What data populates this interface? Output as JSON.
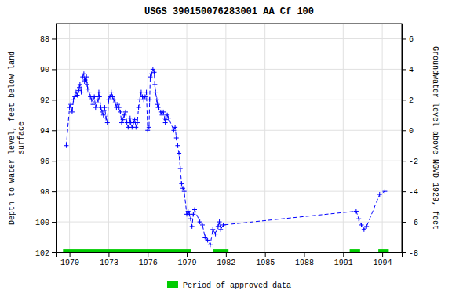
{
  "chart_data": {
    "type": "line",
    "title": "USGS 390150076283001 AA Cf 100",
    "ylabel": "Depth to water level, feet below land\nsurface",
    "y2label": "Groundwater level above NGVD 1929, feet",
    "xlim": [
      1969.0,
      1995.5
    ],
    "xticks": [
      1970,
      1973,
      1976,
      1979,
      1982,
      1985,
      1988,
      1991,
      1994
    ],
    "ylim": [
      102,
      87
    ],
    "yticks": [
      88,
      90,
      92,
      94,
      96,
      98,
      100,
      102
    ],
    "y2lim": [
      -8,
      7
    ],
    "y2ticks": [
      6,
      4,
      2,
      0,
      -2,
      -4,
      -6,
      -8
    ],
    "grid": true,
    "legend": "bottom",
    "x": [
      1969.75,
      1970.0,
      1970.1,
      1970.2,
      1970.3,
      1970.4,
      1970.5,
      1970.6,
      1970.7,
      1970.75,
      1970.8,
      1970.9,
      1971.0,
      1971.1,
      1971.15,
      1971.2,
      1971.3,
      1971.35,
      1971.4,
      1971.5,
      1971.6,
      1971.7,
      1971.8,
      1971.9,
      1972.0,
      1972.1,
      1972.2,
      1972.25,
      1972.3,
      1972.4,
      1972.5,
      1972.6,
      1972.65,
      1972.7,
      1972.8,
      1972.9,
      1973.0,
      1973.1,
      1973.2,
      1973.3,
      1973.4,
      1973.5,
      1973.6,
      1973.7,
      1973.8,
      1973.9,
      1974.0,
      1974.1,
      1974.2,
      1974.3,
      1974.4,
      1974.5,
      1974.6,
      1974.65,
      1974.7,
      1974.8,
      1974.9,
      1975.0,
      1975.1,
      1975.2,
      1975.3,
      1975.4,
      1975.5,
      1975.6,
      1975.7,
      1975.8,
      1975.9,
      1976.0,
      1976.1,
      1976.15,
      1976.2,
      1976.3,
      1976.4,
      1976.5,
      1976.55,
      1976.6,
      1976.7,
      1976.75,
      1976.8,
      1977.0,
      1977.1,
      1977.2,
      1977.3,
      1977.35,
      1977.4,
      1977.5,
      1977.6,
      1978.0,
      1978.1,
      1978.2,
      1978.3,
      1978.4,
      1978.5,
      1978.6,
      1978.7,
      1978.8,
      1979.0,
      1979.1,
      1979.2,
      1979.3,
      1979.4,
      1979.5,
      1979.6,
      1980.0,
      1980.2,
      1980.4,
      1980.6,
      1980.8,
      1981.0,
      1981.2,
      1981.4,
      1981.5,
      1981.6,
      1981.8,
      1992.0,
      1992.2,
      1992.4,
      1992.6,
      1992.8,
      1993.8,
      1994.2
    ],
    "series": [
      {
        "type": "line",
        "color": "#0000ff",
        "line_style": "dashed",
        "marker": "plus",
        "values": [
          95.0,
          92.5,
          92.3,
          92.8,
          92.0,
          91.8,
          91.5,
          91.7,
          91.4,
          91.2,
          91.0,
          91.5,
          90.5,
          90.3,
          90.8,
          90.7,
          90.5,
          91.0,
          91.3,
          91.5,
          91.8,
          92.0,
          92.3,
          91.8,
          92.5,
          92.2,
          92.0,
          91.5,
          91.8,
          92.5,
          92.8,
          93.0,
          92.7,
          92.5,
          93.2,
          93.5,
          92.0,
          91.8,
          91.5,
          91.8,
          92.0,
          92.2,
          92.5,
          92.3,
          92.5,
          92.8,
          93.5,
          93.3,
          93.0,
          92.8,
          93.5,
          93.8,
          93.5,
          93.2,
          93.5,
          93.8,
          93.5,
          93.3,
          93.8,
          93.5,
          92.5,
          92.0,
          91.5,
          91.8,
          92.0,
          91.8,
          91.5,
          94.0,
          93.8,
          92.0,
          90.5,
          90.3,
          90.0,
          90.2,
          91.0,
          91.5,
          92.0,
          92.3,
          92.5,
          92.8,
          93.0,
          92.8,
          93.2,
          93.5,
          93.3,
          93.0,
          93.2,
          94.0,
          93.8,
          94.5,
          95.0,
          95.5,
          96.5,
          97.5,
          97.8,
          98.0,
          99.5,
          99.3,
          99.5,
          99.8,
          100.3,
          99.5,
          99.2,
          100.0,
          100.2,
          101.0,
          101.2,
          101.5,
          100.5,
          100.8,
          100.3,
          100.0,
          100.5,
          100.2,
          99.3,
          99.8,
          100.2,
          100.5,
          100.3,
          98.2,
          98.0
        ]
      },
      {
        "type": "bar",
        "orientation": "horizontal",
        "name": "Period of approved data",
        "color": "#00cc00",
        "y": 102,
        "height": 0.4,
        "ranges": [
          [
            1969.5,
            1979.3
          ],
          [
            1981.0,
            1982.2
          ],
          [
            1991.5,
            1992.3
          ],
          [
            1993.7,
            1994.5
          ]
        ]
      }
    ]
  }
}
